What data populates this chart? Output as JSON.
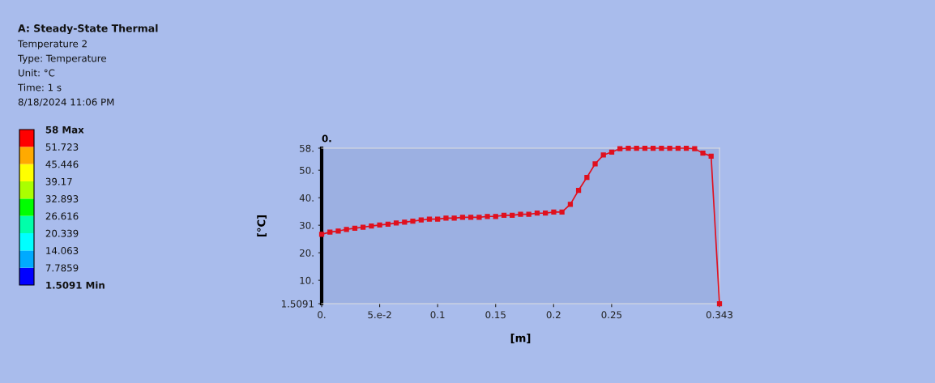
{
  "chart_data": {
    "type": "line",
    "title": "A: Steady-State Thermal",
    "annotations": [
      "Temperature 2",
      "Type: Temperature",
      "Unit: °C",
      "Time: 1 s",
      "8/18/2024 11:06 PM",
      "0."
    ],
    "xlabel": "[m]",
    "ylabel": "[°C]",
    "color": "#e0101e",
    "marker": "square",
    "grid": false,
    "x": [
      0,
      0.00715,
      0.0143,
      0.0214,
      0.0286,
      0.0357,
      0.0429,
      0.05,
      0.0572,
      0.0643,
      0.0715,
      0.0786,
      0.0858,
      0.0929,
      0.1,
      0.1072,
      0.1143,
      0.1215,
      0.1286,
      0.1358,
      0.1429,
      0.15,
      0.1572,
      0.1643,
      0.1715,
      0.1786,
      0.1858,
      0.1929,
      0.2001,
      0.2072,
      0.2144,
      0.2215,
      0.2287,
      0.2358,
      0.2429,
      0.2501,
      0.2572,
      0.2644,
      0.2715,
      0.2787,
      0.2858,
      0.293,
      0.3001,
      0.3073,
      0.3144,
      0.3216,
      0.3287,
      0.3358,
      0.343
    ],
    "values": [
      26.7,
      27.5,
      27.9,
      28.5,
      28.9,
      29.3,
      29.7,
      30.1,
      30.4,
      30.8,
      31.1,
      31.5,
      31.9,
      32.2,
      32.2,
      32.6,
      32.6,
      32.9,
      32.9,
      32.9,
      33.2,
      33.2,
      33.6,
      33.6,
      34.0,
      34.0,
      34.4,
      34.4,
      34.8,
      34.8,
      37.6,
      42.7,
      47.4,
      52.3,
      55.5,
      56.6,
      57.8,
      58,
      58,
      58,
      58,
      58,
      58,
      58,
      58,
      57.8,
      56.2,
      55.1,
      1.5091
    ],
    "xlim": [
      0,
      0.343
    ],
    "ylim": [
      1.5091,
      58
    ],
    "xticks": [
      {
        "value": 0,
        "label": "0."
      },
      {
        "value": 0.05,
        "label": "5.e-2"
      },
      0.1,
      0.15,
      0.2,
      0.25,
      0.343
    ],
    "yticks": [
      1.5091,
      {
        "value": 10,
        "label": "10."
      },
      {
        "value": 20,
        "label": "20."
      },
      {
        "value": 30,
        "label": "30."
      },
      {
        "value": 40,
        "label": "40."
      },
      {
        "value": 50,
        "label": "50."
      },
      {
        "value": 58,
        "label": "58."
      }
    ],
    "clim": [
      1.5091,
      58
    ],
    "cticks": [
      {
        "value": 58,
        "label": "58 Max"
      },
      51.723,
      45.446,
      39.17,
      32.893,
      26.616,
      20.339,
      14.063,
      7.7859,
      {
        "value": 1.5091,
        "label": "1.5091 Min"
      }
    ]
  }
}
